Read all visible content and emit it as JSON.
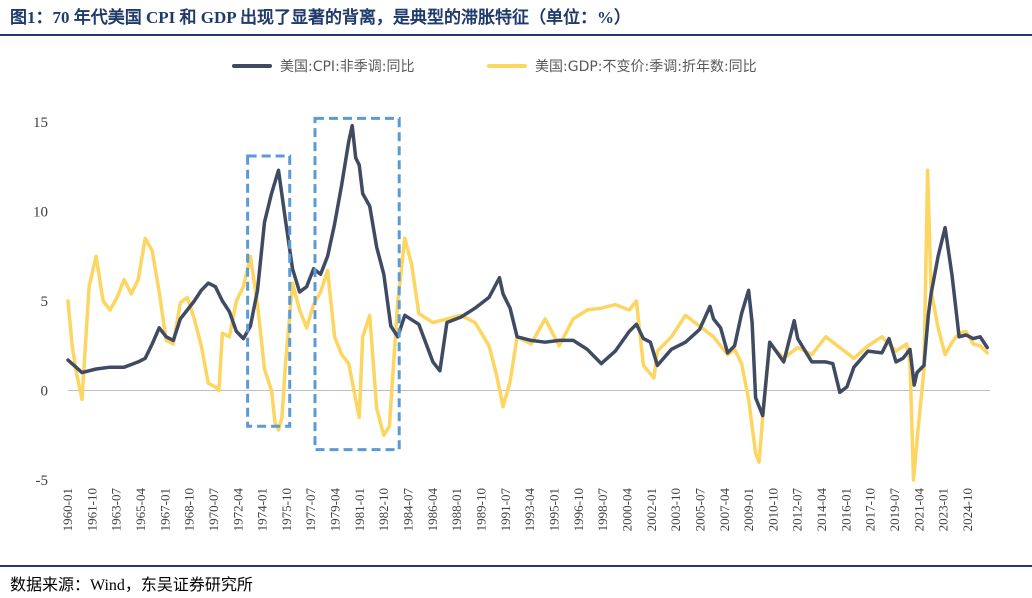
{
  "title": "图1：70 年代美国 CPI 和 GDP 出现了显著的背离，是典型的滞胀特征（单位：%）",
  "source": "数据来源：Wind，东吴证券研究所",
  "colors": {
    "cpi": "#3f4a63",
    "gdp": "#fdd561",
    "box": "#5b9bd5",
    "rule": "#1f3a6b"
  },
  "chart_data": {
    "type": "line",
    "title": "",
    "xlabel": "",
    "ylabel": "",
    "ylim": [
      -5,
      15
    ],
    "yticks": [
      -5,
      0,
      5,
      10,
      15
    ],
    "xlim": [
      1960.0,
      2025.7
    ],
    "x_tick_labels": [
      "1960-01",
      "1961-10",
      "1963-07",
      "1965-04",
      "1967-01",
      "1968-10",
      "1970-07",
      "1972-04",
      "1974-01",
      "1975-10",
      "1977-07",
      "1979-04",
      "1981-01",
      "1982-10",
      "1984-07",
      "1986-04",
      "1988-01",
      "1989-10",
      "1991-07",
      "1993-04",
      "1995-01",
      "1996-10",
      "1998-07",
      "2000-04",
      "2002-01",
      "2003-10",
      "2005-07",
      "2007-04",
      "2009-01",
      "2010-10",
      "2012-07",
      "2014-04",
      "2016-01",
      "2017-10",
      "2019-07",
      "2021-04",
      "2023-01",
      "2024-10"
    ],
    "legend_position": "top",
    "grid": false,
    "series": [
      {
        "name": "美国:CPI:非季调:同比",
        "x": [
          1960.0,
          1961.0,
          1962.0,
          1963.0,
          1964.0,
          1965.0,
          1965.5,
          1966.0,
          1966.5,
          1967.0,
          1967.5,
          1968.0,
          1968.5,
          1969.0,
          1969.5,
          1970.0,
          1970.5,
          1971.0,
          1971.5,
          1972.0,
          1972.5,
          1973.0,
          1973.5,
          1974.0,
          1974.5,
          1975.0,
          1975.5,
          1976.0,
          1976.5,
          1977.0,
          1977.5,
          1978.0,
          1978.5,
          1979.0,
          1979.5,
          1980.0,
          1980.25,
          1980.5,
          1980.75,
          1981.0,
          1981.5,
          1982.0,
          1982.5,
          1983.0,
          1983.5,
          1984.0,
          1985.0,
          1986.0,
          1986.5,
          1987.0,
          1988.0,
          1989.0,
          1990.0,
          1990.75,
          1991.0,
          1991.5,
          1992.0,
          1993.0,
          1994.0,
          1995.0,
          1996.0,
          1997.0,
          1998.0,
          1999.0,
          2000.0,
          2000.5,
          2001.0,
          2001.5,
          2002.0,
          2003.0,
          2004.0,
          2005.0,
          2005.75,
          2006.0,
          2006.5,
          2007.0,
          2007.5,
          2008.0,
          2008.5,
          2008.75,
          2009.0,
          2009.5,
          2010.0,
          2011.0,
          2011.75,
          2012.0,
          2013.0,
          2014.0,
          2014.5,
          2015.0,
          2015.5,
          2016.0,
          2017.0,
          2018.0,
          2018.5,
          2019.0,
          2019.5,
          2020.0,
          2020.3,
          2020.5,
          2021.0,
          2021.3,
          2021.5,
          2022.0,
          2022.5,
          2023.0,
          2023.5,
          2024.0,
          2024.5,
          2025.0,
          2025.5
        ],
        "y": [
          1.7,
          1.0,
          1.2,
          1.3,
          1.3,
          1.6,
          1.8,
          2.6,
          3.5,
          3.0,
          2.8,
          4.0,
          4.5,
          5.0,
          5.6,
          6.0,
          5.8,
          5.0,
          4.4,
          3.3,
          2.9,
          3.6,
          5.6,
          9.4,
          11.0,
          12.3,
          9.5,
          6.8,
          5.5,
          5.8,
          6.8,
          6.5,
          7.5,
          9.3,
          11.5,
          13.9,
          14.8,
          13.0,
          12.6,
          11.0,
          10.3,
          8.0,
          6.5,
          3.6,
          3.0,
          4.2,
          3.7,
          1.6,
          1.1,
          3.8,
          4.1,
          4.6,
          5.2,
          6.3,
          5.4,
          4.6,
          3.0,
          2.8,
          2.7,
          2.8,
          2.8,
          2.3,
          1.5,
          2.2,
          3.3,
          3.7,
          2.9,
          2.7,
          1.4,
          2.3,
          2.7,
          3.4,
          4.7,
          4.0,
          3.5,
          2.1,
          2.5,
          4.3,
          5.6,
          3.8,
          -0.4,
          -1.4,
          2.7,
          1.6,
          3.9,
          2.9,
          1.6,
          1.6,
          1.5,
          -0.1,
          0.2,
          1.3,
          2.2,
          2.1,
          2.9,
          1.6,
          1.8,
          2.3,
          0.3,
          1.0,
          1.4,
          4.2,
          5.4,
          7.5,
          9.1,
          6.4,
          3.0,
          3.1,
          2.9,
          3.0,
          2.4
        ]
      },
      {
        "name": "美国:GDP:不变价:季调:折年数:同比",
        "x": [
          1960.0,
          1960.3,
          1960.6,
          1961.0,
          1961.5,
          1962.0,
          1962.5,
          1963.0,
          1963.5,
          1964.0,
          1964.5,
          1965.0,
          1965.5,
          1966.0,
          1966.5,
          1967.0,
          1967.5,
          1968.0,
          1968.5,
          1969.0,
          1969.5,
          1970.0,
          1970.5,
          1970.75,
          1971.0,
          1971.5,
          1972.0,
          1972.5,
          1973.0,
          1973.5,
          1974.0,
          1974.5,
          1974.75,
          1975.0,
          1975.25,
          1975.5,
          1976.0,
          1976.5,
          1977.0,
          1977.5,
          1978.0,
          1978.5,
          1979.0,
          1979.5,
          1980.0,
          1980.5,
          1980.75,
          1981.0,
          1981.5,
          1982.0,
          1982.5,
          1982.9,
          1983.5,
          1984.0,
          1984.5,
          1985.0,
          1986.0,
          1987.0,
          1988.0,
          1989.0,
          1990.0,
          1990.5,
          1991.0,
          1991.5,
          1992.0,
          1993.0,
          1994.0,
          1995.0,
          1996.0,
          1997.0,
          1998.0,
          1999.0,
          2000.0,
          2000.5,
          2001.0,
          2001.75,
          2002.0,
          2003.0,
          2004.0,
          2005.0,
          2006.0,
          2007.0,
          2007.5,
          2008.0,
          2008.5,
          2009.0,
          2009.25,
          2009.5,
          2010.0,
          2011.0,
          2012.0,
          2013.0,
          2014.0,
          2015.0,
          2016.0,
          2017.0,
          2018.0,
          2019.0,
          2019.75,
          2020.0,
          2020.25,
          2020.5,
          2021.0,
          2021.25,
          2021.5,
          2022.0,
          2022.5,
          2023.0,
          2023.5,
          2024.0,
          2024.5,
          2025.0,
          2025.5
        ],
        "y": [
          5.0,
          2.5,
          1.0,
          -0.5,
          5.8,
          7.5,
          5.0,
          4.5,
          5.2,
          6.2,
          5.4,
          6.2,
          8.5,
          7.8,
          5.5,
          2.8,
          2.6,
          4.9,
          5.2,
          4.0,
          2.5,
          0.4,
          0.2,
          0.0,
          3.2,
          3.0,
          5.0,
          5.8,
          7.5,
          4.8,
          1.2,
          0.0,
          -1.8,
          -2.2,
          -1.5,
          1.5,
          6.0,
          4.5,
          3.5,
          4.8,
          5.5,
          6.7,
          3.0,
          2.0,
          1.5,
          -0.5,
          -1.5,
          3.0,
          4.2,
          -1.0,
          -2.5,
          -2.0,
          5.0,
          8.5,
          7.0,
          4.3,
          3.8,
          4.0,
          4.2,
          3.8,
          2.5,
          1.0,
          -0.9,
          0.5,
          3.0,
          2.6,
          4.0,
          2.5,
          4.0,
          4.5,
          4.6,
          4.8,
          4.5,
          5.0,
          1.4,
          0.7,
          2.2,
          3.0,
          4.2,
          3.6,
          3.0,
          2.0,
          2.3,
          1.5,
          -0.5,
          -3.5,
          -4.0,
          -1.5,
          2.6,
          1.8,
          2.4,
          2.0,
          3.0,
          2.4,
          1.8,
          2.5,
          3.0,
          2.2,
          2.6,
          1.5,
          -5.0,
          -2.8,
          1.2,
          12.3,
          5.6,
          3.5,
          2.0,
          2.7,
          3.2,
          3.3,
          2.6,
          2.5,
          2.1
        ]
      }
    ],
    "highlight_regions": [
      {
        "x0": 1972.8,
        "x1": 1975.8,
        "y0": -2.0,
        "y1": 13.1
      },
      {
        "x0": 1977.6,
        "x1": 1983.6,
        "y0": -3.3,
        "y1": 15.2
      }
    ]
  }
}
